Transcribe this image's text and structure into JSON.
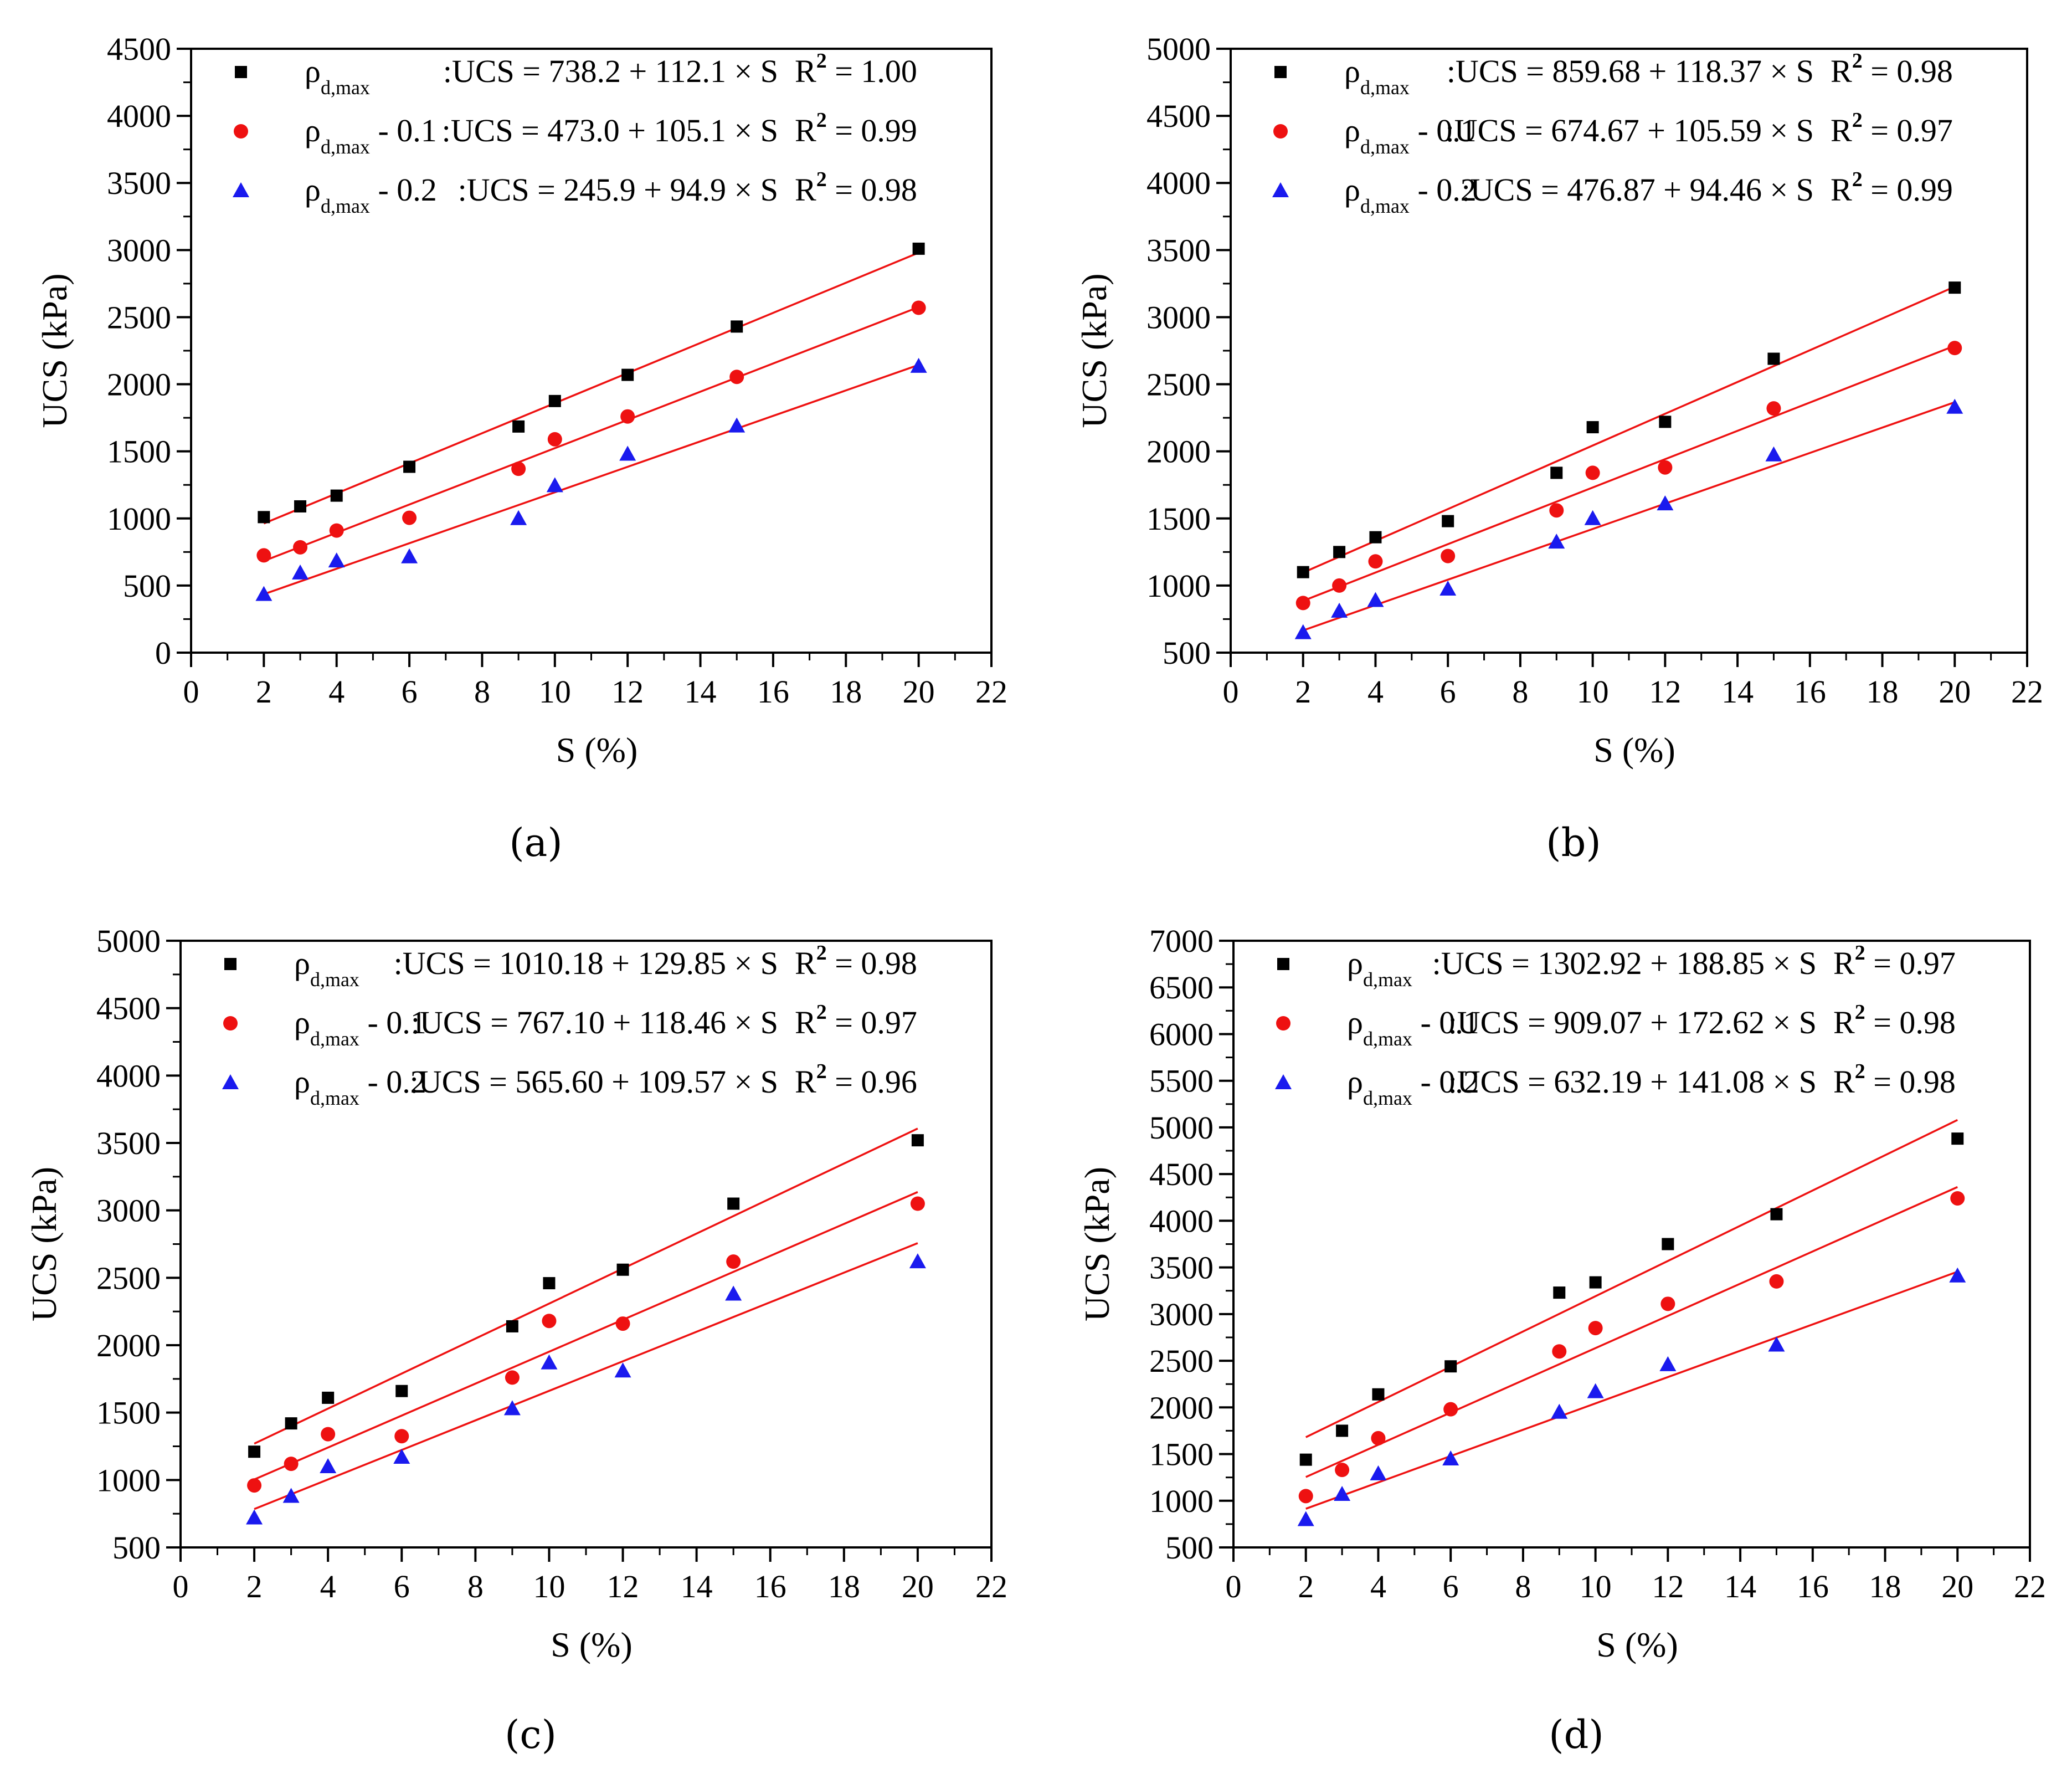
{
  "figure": {
    "series_colors": {
      "series1": "#000000",
      "series2": "#ee1111",
      "series3": "#1a1aee",
      "fit": "#ee1111"
    },
    "marker_shapes": [
      "square",
      "circle",
      "triangle"
    ]
  },
  "chart_data": [
    {
      "type": "scatter",
      "panel_label": "(a)",
      "xlabel": "S (%)",
      "ylabel": "UCS (kPa)",
      "xlim": [
        0,
        22
      ],
      "ylim": [
        0,
        4500
      ],
      "xticks": [
        "0",
        "2",
        "4",
        "6",
        "8",
        "10",
        "12",
        "14",
        "16",
        "18",
        "20",
        "22"
      ],
      "yticks": [
        "0",
        "500",
        "1000",
        "1500",
        "2000",
        "2500",
        "3000",
        "3500",
        "4000",
        "4500"
      ],
      "grid": false,
      "legend_position": "top-right",
      "x": [
        2,
        3,
        4,
        6,
        9,
        10,
        12,
        15,
        20
      ],
      "series": [
        {
          "symbol": "ρ",
          "sub": "d,max",
          "suffix": "",
          "equation": ":UCS = 738.2 + 112.1 × S",
          "r2_label": "R",
          "r2_sup": "2",
          "r2_value": "= 1.00",
          "intercept": 738.2,
          "slope": 112.1,
          "values": [
            1010,
            1090,
            1170,
            1385,
            1685,
            1875,
            2070,
            2430,
            3010
          ]
        },
        {
          "symbol": "ρ",
          "sub": "d,max",
          "suffix": " - 0.1",
          "equation": ":UCS = 473.0 + 105.1 × S",
          "r2_label": "R",
          "r2_sup": "2",
          "r2_value": "= 0.99",
          "intercept": 473.0,
          "slope": 105.1,
          "values": [
            725,
            785,
            910,
            1005,
            1370,
            1590,
            1760,
            2055,
            2570
          ]
        },
        {
          "symbol": "ρ",
          "sub": "d,max",
          "suffix": " - 0.2",
          "equation": ":UCS = 245.9 + 94.9 × S",
          "r2_label": "R",
          "r2_sup": "2",
          "r2_value": "= 0.98",
          "intercept": 245.9,
          "slope": 94.9,
          "values": [
            435,
            595,
            685,
            715,
            1000,
            1245,
            1480,
            1690,
            2135
          ]
        }
      ]
    },
    {
      "type": "scatter",
      "panel_label": "(b)",
      "xlabel": "S (%)",
      "ylabel": "UCS (kPa)",
      "xlim": [
        0,
        22
      ],
      "ylim": [
        500,
        5000
      ],
      "xticks": [
        "0",
        "2",
        "4",
        "6",
        "8",
        "10",
        "12",
        "14",
        "16",
        "18",
        "20",
        "22"
      ],
      "yticks": [
        "500",
        "1000",
        "1500",
        "2000",
        "2500",
        "3000",
        "3500",
        "4000",
        "4500",
        "5000"
      ],
      "grid": false,
      "legend_position": "top-right",
      "x": [
        2,
        3,
        4,
        6,
        9,
        10,
        12,
        15,
        20
      ],
      "series": [
        {
          "symbol": "ρ",
          "sub": "d,max",
          "suffix": "",
          "equation": ":UCS = 859.68 + 118.37 × S",
          "r2_label": "R",
          "r2_sup": "2",
          "r2_value": "= 0.98",
          "intercept": 859.68,
          "slope": 118.37,
          "values": [
            1100,
            1250,
            1360,
            1480,
            1840,
            2180,
            2220,
            2690,
            3220
          ]
        },
        {
          "symbol": "ρ",
          "sub": "d,max",
          "suffix": " - 0.1",
          "equation": ":UCS = 674.67 + 105.59 × S",
          "r2_label": "R",
          "r2_sup": "2",
          "r2_value": "= 0.97",
          "intercept": 674.67,
          "slope": 105.59,
          "values": [
            870,
            1000,
            1180,
            1220,
            1560,
            1840,
            1880,
            2320,
            2770
          ]
        },
        {
          "symbol": "ρ",
          "sub": "d,max",
          "suffix": " - 0.2",
          "equation": ":UCS = 476.87 + 94.46 × S",
          "r2_label": "R",
          "r2_sup": "2",
          "r2_value": "= 0.99",
          "intercept": 476.87,
          "slope": 94.46,
          "values": [
            650,
            810,
            890,
            975,
            1325,
            1500,
            1610,
            1975,
            2330
          ]
        }
      ]
    },
    {
      "type": "scatter",
      "panel_label": "(c)",
      "xlabel": "S (%)",
      "ylabel": "UCS (kPa)",
      "xlim": [
        0,
        22
      ],
      "ylim": [
        500,
        5000
      ],
      "xticks": [
        "0",
        "2",
        "4",
        "6",
        "8",
        "10",
        "12",
        "14",
        "16",
        "18",
        "20",
        "22"
      ],
      "yticks": [
        "500",
        "1000",
        "1500",
        "2000",
        "2500",
        "3000",
        "3500",
        "4000",
        "4500",
        "5000"
      ],
      "grid": false,
      "legend_position": "top-right",
      "x": [
        2,
        3,
        4,
        6,
        9,
        10,
        12,
        15,
        20
      ],
      "series": [
        {
          "symbol": "ρ",
          "sub": "d,max",
          "suffix": "",
          "equation": ":UCS = 1010.18 + 129.85 × S",
          "r2_label": "R",
          "r2_sup": "2",
          "r2_value": "= 0.98",
          "intercept": 1010.18,
          "slope": 129.85,
          "values": [
            1210,
            1420,
            1610,
            1660,
            2140,
            2460,
            2560,
            3050,
            3520
          ]
        },
        {
          "symbol": "ρ",
          "sub": "d,max",
          "suffix": " - 0.1",
          "equation": ":UCS = 767.10 + 118.46 × S",
          "r2_label": "R",
          "r2_sup": "2",
          "r2_value": "= 0.97",
          "intercept": 767.1,
          "slope": 118.46,
          "values": [
            960,
            1120,
            1340,
            1325,
            1760,
            2180,
            2160,
            2620,
            3050
          ]
        },
        {
          "symbol": "ρ",
          "sub": "d,max",
          "suffix": " - 0.2",
          "equation": ":UCS = 565.60 + 109.57 × S",
          "r2_label": "R",
          "r2_sup": "2",
          "r2_value": "= 0.96",
          "intercept": 565.6,
          "slope": 109.57,
          "values": [
            720,
            880,
            1100,
            1170,
            1530,
            1870,
            1810,
            2380,
            2620
          ]
        }
      ]
    },
    {
      "type": "scatter",
      "panel_label": "(d)",
      "xlabel": "S (%)",
      "ylabel": "UCS (kPa)",
      "xlim": [
        0,
        22
      ],
      "ylim": [
        500,
        7000
      ],
      "xticks": [
        "0",
        "2",
        "4",
        "6",
        "8",
        "10",
        "12",
        "14",
        "16",
        "18",
        "20",
        "22"
      ],
      "yticks": [
        "500",
        "1000",
        "1500",
        "2000",
        "2500",
        "3000",
        "3500",
        "4000",
        "4500",
        "5000",
        "5500",
        "6000",
        "6500",
        "7000"
      ],
      "grid": false,
      "legend_position": "top-right",
      "x": [
        2,
        3,
        4,
        6,
        9,
        10,
        12,
        15,
        20
      ],
      "series": [
        {
          "symbol": "ρ",
          "sub": "d,max",
          "suffix": "",
          "equation": ":UCS = 1302.92 + 188.85 × S",
          "r2_label": "R",
          "r2_sup": "2",
          "r2_value": "= 0.97",
          "intercept": 1302.92,
          "slope": 188.85,
          "values": [
            1440,
            1750,
            2140,
            2440,
            3230,
            3340,
            3750,
            4070,
            4880
          ]
        },
        {
          "symbol": "ρ",
          "sub": "d,max",
          "suffix": " - 0.1",
          "equation": ":UCS = 909.07 + 172.62 × S",
          "r2_label": "R",
          "r2_sup": "2",
          "r2_value": "= 0.98",
          "intercept": 909.07,
          "slope": 172.62,
          "values": [
            1050,
            1330,
            1670,
            1980,
            2600,
            2850,
            3110,
            3350,
            4240
          ]
        },
        {
          "symbol": "ρ",
          "sub": "d,max",
          "suffix": " - 0.2",
          "equation": ":UCS = 632.19 + 141.08 × S",
          "r2_label": "R",
          "r2_sup": "2",
          "r2_value": "= 0.98",
          "intercept": 632.19,
          "slope": 141.08,
          "values": [
            800,
            1070,
            1290,
            1450,
            1950,
            2170,
            2460,
            2670,
            3410
          ]
        }
      ]
    }
  ]
}
